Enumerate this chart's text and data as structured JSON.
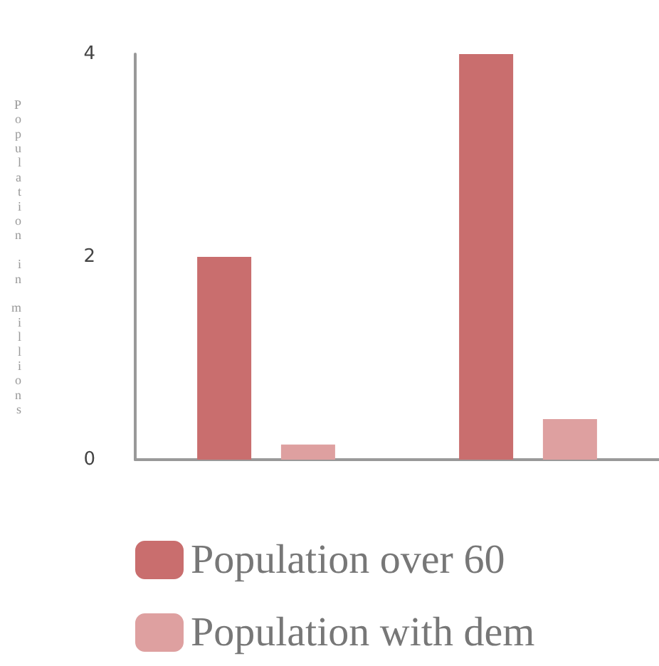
{
  "chart_data": {
    "type": "bar",
    "ylabel": "Population in millions",
    "categories": [
      null,
      null
    ],
    "series": [
      {
        "name": "Population over 60",
        "color": "#c96e6e",
        "values": [
          2,
          4
        ]
      },
      {
        "name": "Population with dem",
        "color": "#dea0a0",
        "values": [
          0.15,
          0.4
        ]
      }
    ],
    "ylim": [
      0,
      4
    ],
    "yticks": [
      0,
      2,
      4
    ],
    "grid": false,
    "legend": "bottom"
  }
}
